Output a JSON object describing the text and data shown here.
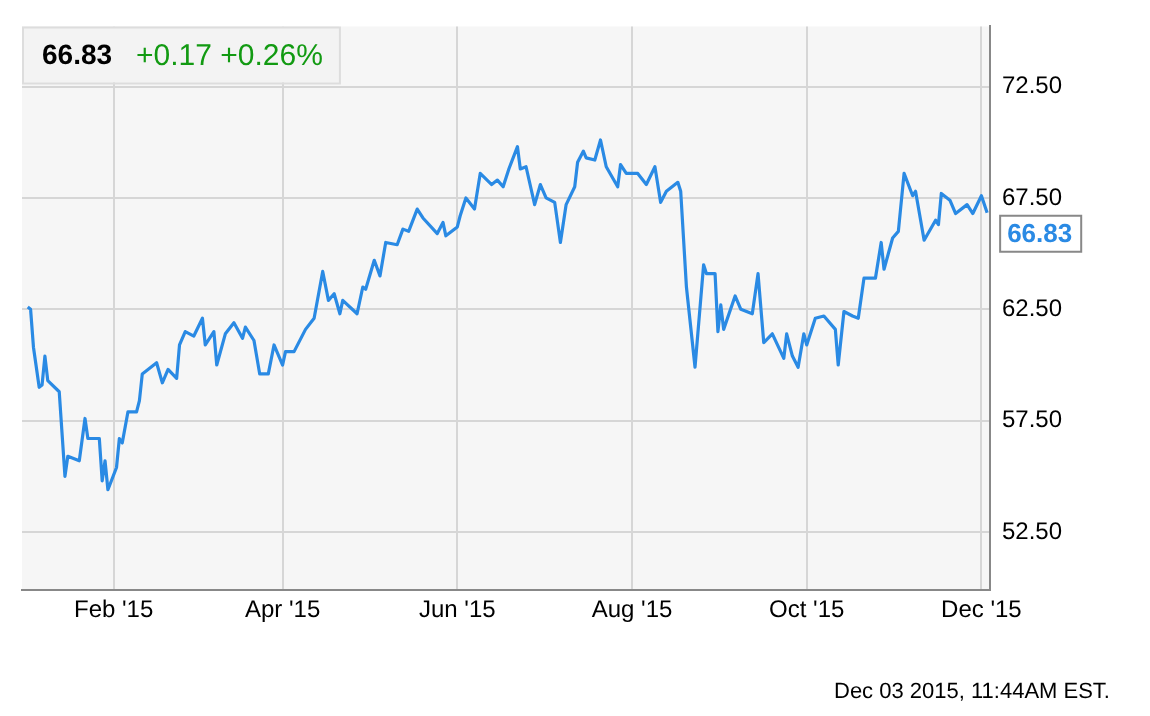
{
  "chart_data": {
    "type": "line",
    "title": "66.83",
    "subtitle": "+0.17 +0.26%",
    "x": [
      "2015-01-02",
      "2015-01-03",
      "2015-01-04",
      "2015-01-06",
      "2015-01-07",
      "2015-01-08",
      "2015-01-09",
      "2015-01-13",
      "2015-01-15",
      "2015-01-16",
      "2015-01-20",
      "2015-01-22",
      "2015-01-23",
      "2015-01-27",
      "2015-01-28",
      "2015-01-29",
      "2015-01-30",
      "2015-02-02",
      "2015-02-03",
      "2015-02-04",
      "2015-02-06",
      "2015-02-09",
      "2015-02-10",
      "2015-02-11",
      "2015-02-16",
      "2015-02-18",
      "2015-02-20",
      "2015-02-23",
      "2015-02-24",
      "2015-02-26",
      "2015-03-01",
      "2015-03-04",
      "2015-03-05",
      "2015-03-08",
      "2015-03-09",
      "2015-03-12",
      "2015-03-15",
      "2015-03-18",
      "2015-03-19",
      "2015-03-22",
      "2015-03-24",
      "2015-03-27",
      "2015-03-29",
      "2015-04-01",
      "2015-04-02",
      "2015-04-05",
      "2015-04-09",
      "2015-04-12",
      "2015-04-15",
      "2015-04-17",
      "2015-04-19",
      "2015-04-21",
      "2015-04-22",
      "2015-04-27",
      "2015-04-29",
      "2015-04-30",
      "2015-05-03",
      "2015-05-05",
      "2015-05-07",
      "2015-05-11",
      "2015-05-13",
      "2015-05-15",
      "2015-05-18",
      "2015-05-20",
      "2015-05-25",
      "2015-05-27",
      "2015-05-28",
      "2015-06-01",
      "2015-06-02",
      "2015-06-04",
      "2015-06-07",
      "2015-06-09",
      "2015-06-13",
      "2015-06-15",
      "2015-06-17",
      "2015-06-19",
      "2015-06-22",
      "2015-06-23",
      "2015-06-25",
      "2015-06-28",
      "2015-06-30",
      "2015-07-02",
      "2015-07-05",
      "2015-07-07",
      "2015-07-09",
      "2015-07-12",
      "2015-07-13",
      "2015-07-15",
      "2015-07-16",
      "2015-07-19",
      "2015-07-21",
      "2015-07-23",
      "2015-07-27",
      "2015-07-28",
      "2015-07-30",
      "2015-08-03",
      "2015-08-06",
      "2015-08-09",
      "2015-08-11",
      "2015-08-13",
      "2015-08-17",
      "2015-08-18",
      "2015-08-20",
      "2015-08-23",
      "2015-08-26",
      "2015-08-27",
      "2015-08-30",
      "2015-08-31",
      "2015-09-01",
      "2015-09-02",
      "2015-09-06",
      "2015-09-08",
      "2015-09-12",
      "2015-09-14",
      "2015-09-16",
      "2015-09-19",
      "2015-09-23",
      "2015-09-24",
      "2015-09-26",
      "2015-09-28",
      "2015-09-30",
      "2015-10-01",
      "2015-10-04",
      "2015-10-07",
      "2015-10-11",
      "2015-10-12",
      "2015-10-14",
      "2015-10-17",
      "2015-10-19",
      "2015-10-21",
      "2015-10-25",
      "2015-10-27",
      "2015-10-28",
      "2015-10-31",
      "2015-11-02",
      "2015-11-04",
      "2015-11-07",
      "2015-11-08",
      "2015-11-11",
      "2015-11-15",
      "2015-11-16",
      "2015-11-17",
      "2015-11-20",
      "2015-11-22",
      "2015-11-26",
      "2015-11-28",
      "2015-12-01",
      "2015-12-03"
    ],
    "series": [
      {
        "color": "#2a8ae4",
        "values": [
          62.6,
          62.5,
          60.8,
          59.0,
          59.1,
          60.4,
          59.3,
          58.8,
          55.0,
          55.9,
          55.7,
          57.6,
          56.7,
          56.7,
          54.8,
          55.7,
          54.4,
          55.4,
          56.7,
          56.5,
          57.9,
          57.9,
          58.4,
          59.6,
          60.1,
          59.2,
          59.8,
          59.4,
          60.9,
          61.5,
          61.3,
          62.1,
          60.9,
          61.5,
          60.0,
          61.4,
          61.9,
          61.2,
          61.7,
          61.1,
          59.6,
          59.6,
          60.9,
          60.0,
          60.6,
          60.6,
          61.6,
          62.1,
          64.2,
          62.9,
          63.2,
          62.3,
          62.9,
          62.3,
          63.5,
          63.4,
          64.7,
          64.0,
          65.5,
          65.4,
          66.1,
          66.0,
          67.0,
          66.6,
          65.9,
          66.4,
          65.8,
          66.2,
          66.7,
          67.5,
          67.0,
          68.6,
          68.1,
          68.3,
          68.0,
          68.8,
          69.8,
          68.8,
          68.9,
          67.2,
          68.1,
          67.5,
          67.3,
          65.5,
          67.2,
          68.0,
          69.1,
          69.6,
          69.3,
          69.2,
          70.1,
          68.9,
          68.0,
          69.0,
          68.6,
          68.6,
          68.1,
          68.9,
          67.3,
          67.8,
          68.2,
          67.8,
          63.5,
          59.9,
          64.5,
          64.1,
          64.1,
          61.5,
          62.7,
          61.6,
          63.1,
          62.5,
          62.3,
          64.1,
          61.0,
          61.4,
          60.3,
          61.4,
          60.4,
          59.9,
          61.4,
          60.9,
          62.1,
          62.2,
          61.6,
          60.0,
          62.4,
          62.2,
          62.1,
          63.9,
          63.9,
          65.5,
          64.3,
          65.7,
          66.0,
          68.6,
          67.6,
          67.8,
          65.6,
          66.5,
          66.3,
          67.7,
          67.4,
          66.8,
          67.2,
          66.8,
          67.6,
          66.83
        ]
      }
    ],
    "xlim": [
      "2014-12-31",
      "2015-12-04"
    ],
    "xticks": [
      {
        "value": "2015-02-01",
        "label": "Feb '15"
      },
      {
        "value": "2015-04-01",
        "label": "Apr '15"
      },
      {
        "value": "2015-06-01",
        "label": "Jun '15"
      },
      {
        "value": "2015-08-01",
        "label": "Aug '15"
      },
      {
        "value": "2015-10-01",
        "label": "Oct '15"
      },
      {
        "value": "2015-12-01",
        "label": "Dec '15"
      }
    ],
    "ylim": [
      49.9,
      75.2
    ],
    "yticks": [
      {
        "value": 52.5,
        "label": "52.50"
      },
      {
        "value": 57.5,
        "label": "57.50"
      },
      {
        "value": 62.5,
        "label": "62.50"
      },
      {
        "value": 67.5,
        "label": "67.50"
      },
      {
        "value": 72.5,
        "label": "72.50"
      }
    ],
    "grid": true,
    "legend": false,
    "marker": "none",
    "line_style": "solid",
    "annotations": [
      {
        "text": "66.83",
        "x": "2015-12-03",
        "y": 66.83
      },
      "Dec 03 2015, 11:44AM EST."
    ]
  }
}
